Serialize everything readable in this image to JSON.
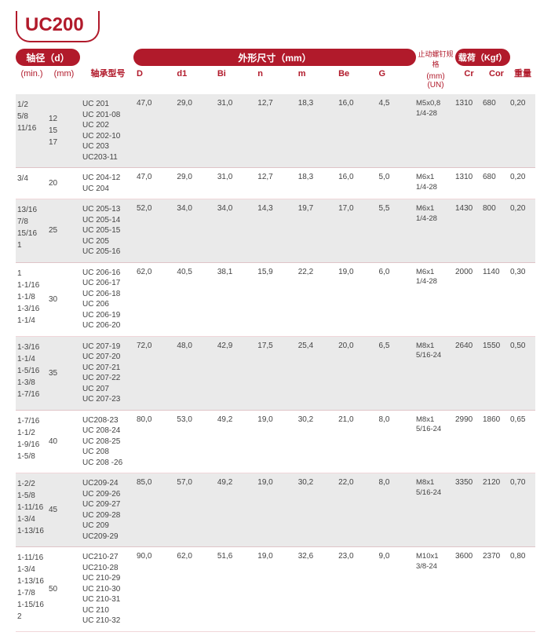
{
  "title": "UC200",
  "header": {
    "shaft_d": "轴径（d）",
    "shaft_sub_min": "(min.)",
    "shaft_sub_mm": "(mm)",
    "model": "轴承型号",
    "dims_title": "外形尺寸（mm）",
    "dim_labels": [
      "D",
      "d1",
      "Bi",
      "n",
      "m",
      "Be",
      "G"
    ],
    "screw_l1": "止动螺钉规格",
    "screw_l2": "(mm)\n(UN)",
    "load_title": "载荷（Kgf）",
    "load_labels": [
      "Cr",
      "Cor"
    ],
    "weight": "重量"
  },
  "rows": [
    {
      "alt": true,
      "min": "1/2\n5/8\n11/16",
      "mm": "12\n15\n17",
      "model": "UC 201\nUC 201-08\nUC 202\nUC 202-10\nUC 203\nUC203-11",
      "D": "47,0",
      "d1": "29,0",
      "Bi": "31,0",
      "n": "12,7",
      "m": "18,3",
      "Be": "16,0",
      "G": "4,5",
      "screw": "M5x0,8\n1/4-28",
      "Cr": "1310",
      "Cor": "680",
      "wt": "0,20"
    },
    {
      "alt": false,
      "min": "3/4",
      "mm": "20",
      "model": "UC 204-12\nUC 204",
      "D": "47,0",
      "d1": "29,0",
      "Bi": "31,0",
      "n": "12,7",
      "m": "18,3",
      "Be": "16,0",
      "G": "5,0",
      "screw": "M6x1\n1/4-28",
      "Cr": "1310",
      "Cor": "680",
      "wt": "0,20"
    },
    {
      "alt": true,
      "min": "13/16\n7/8\n15/16\n1",
      "mm": "25",
      "model": "UC 205-13\nUC 205-14\nUC 205-15\nUC 205\nUC 205-16",
      "D": "52,0",
      "d1": "34,0",
      "Bi": "34,0",
      "n": "14,3",
      "m": "19,7",
      "Be": "17,0",
      "G": "5,5",
      "screw": "M6x1\n1/4-28",
      "Cr": "1430",
      "Cor": "800",
      "wt": "0,20"
    },
    {
      "alt": false,
      "min": "1\n1-1/16\n1-1/8\n1-3/16\n1-1/4",
      "mm": "30",
      "model": "UC 206-16\nUC 206-17\nUC 206-18\nUC 206\nUC 206-19\nUC 206-20",
      "D": "62,0",
      "d1": "40,5",
      "Bi": "38,1",
      "n": "15,9",
      "m": "22,2",
      "Be": "19,0",
      "G": "6,0",
      "screw": "M6x1\n1/4-28",
      "Cr": "2000",
      "Cor": "1140",
      "wt": "0,30"
    },
    {
      "alt": true,
      "min": "1-3/16\n1-1/4\n1-5/16\n1-3/8\n1-7/16",
      "mm": "35",
      "model": "UC 207-19\nUC 207-20\nUC 207-21\nUC 207-22\nUC 207\nUC 207-23",
      "D": "72,0",
      "d1": "48,0",
      "Bi": "42,9",
      "n": "17,5",
      "m": "25,4",
      "Be": "20,0",
      "G": "6,5",
      "screw": "M8x1\n5/16-24",
      "Cr": "2640",
      "Cor": "1550",
      "wt": "0,50"
    },
    {
      "alt": false,
      "min": "1-7/16\n1-1/2\n1-9/16\n1-5/8",
      "mm": "40",
      "model": "UC208-23\nUC 208-24\nUC 208-25\nUC 208\nUC 208 -26",
      "D": "80,0",
      "d1": "53,0",
      "Bi": "49,2",
      "n": "19,0",
      "m": "30,2",
      "Be": "21,0",
      "G": "8,0",
      "screw": "M8x1\n5/16-24",
      "Cr": "2990",
      "Cor": "1860",
      "wt": "0,65"
    },
    {
      "alt": true,
      "min": "1-2/2\n1-5/8\n1-11/16\n1-3/4\n1-13/16",
      "mm": "45",
      "model": "UC209-24\nUC 209-26\nUC 209-27\nUC 209-28\nUC 209\nUC209-29",
      "D": "85,0",
      "d1": "57,0",
      "Bi": "49,2",
      "n": "19,0",
      "m": "30,2",
      "Be": "22,0",
      "G": "8,0",
      "screw": "M8x1\n5/16-24",
      "Cr": "3350",
      "Cor": "2120",
      "wt": "0,70"
    },
    {
      "alt": false,
      "min": "1-11/16\n1-3/4\n1-13/16\n1-7/8\n1-15/16\n2",
      "mm": "50",
      "model": "UC210-27\nUC210-28\nUC 210-29\nUC 210-30\nUC 210-31\nUC 210\nUC 210-32",
      "D": "90,0",
      "d1": "62,0",
      "Bi": "51,6",
      "n": "19,0",
      "m": "32,6",
      "Be": "23,0",
      "G": "9,0",
      "screw": "M10x1\n3/8-24",
      "Cr": "3600",
      "Cor": "2370",
      "wt": "0,80"
    }
  ]
}
